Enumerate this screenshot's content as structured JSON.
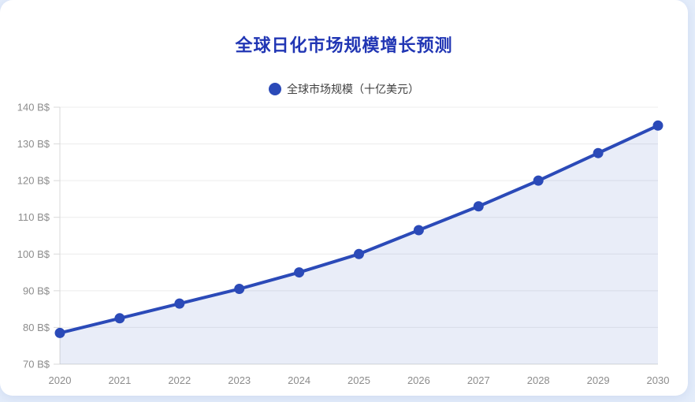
{
  "header": {
    "title": "全球日化市场规模增长预测"
  },
  "legend": {
    "label": "全球市场规模（十亿美元）"
  },
  "colors": {
    "page_background": "#e3ecfa",
    "card_background": "#ffffff",
    "title": "#2136b4",
    "series": "#2b4ab8",
    "series_area": "rgba(43,74,184,0.10)",
    "axis_label": "#8c8c8c",
    "legend_text": "#3f3f3f",
    "gridline": "#ececec",
    "axis_line": "#d9d9d9"
  },
  "chart_data": {
    "type": "line",
    "title": "全球日化市场规模增长预测",
    "categories": [
      "2020",
      "2021",
      "2022",
      "2023",
      "2024",
      "2025",
      "2026",
      "2027",
      "2028",
      "2029",
      "2030"
    ],
    "series": [
      {
        "name": "全球市场规模（十亿美元）",
        "values": [
          78.5,
          82.5,
          86.5,
          90.5,
          95,
          100,
          106.5,
          113,
          120,
          127.5,
          135
        ],
        "color": "#2b4ab8",
        "area": true,
        "marker": "circle"
      }
    ],
    "xlabel": "",
    "ylabel": "",
    "y_axis": {
      "min": 70,
      "max": 140,
      "step": 10,
      "tick_suffix": " B$",
      "tick_labels": [
        "70 B$",
        "80 B$",
        "90 B$",
        "100 B$",
        "110 B$",
        "120 B$",
        "130 B$",
        "140 B$"
      ]
    },
    "grid": true,
    "legend_position": "top"
  }
}
